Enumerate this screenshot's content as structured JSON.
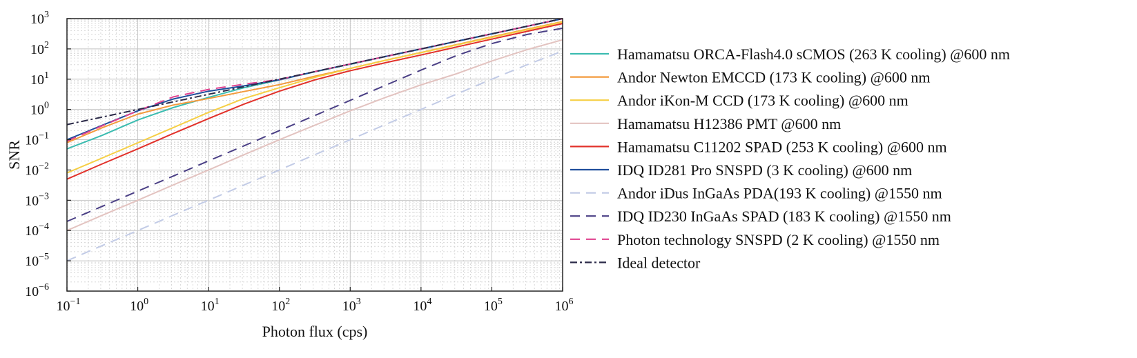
{
  "chart_data": {
    "type": "line",
    "title": "",
    "xlabel": "Photon flux (cps)",
    "ylabel": "SNR",
    "xscale": "log",
    "yscale": "log",
    "xlim": [
      0.1,
      1000000
    ],
    "ylim": [
      1e-06,
      1000
    ],
    "grid": true,
    "legend_position": "right",
    "x_ticks": [
      {
        "base": "10",
        "exp": "−1"
      },
      {
        "base": "10",
        "exp": "0"
      },
      {
        "base": "10",
        "exp": "1"
      },
      {
        "base": "10",
        "exp": "2"
      },
      {
        "base": "10",
        "exp": "3"
      },
      {
        "base": "10",
        "exp": "4"
      },
      {
        "base": "10",
        "exp": "5"
      },
      {
        "base": "10",
        "exp": "6"
      }
    ],
    "y_ticks": [
      {
        "base": "10",
        "exp": "−6"
      },
      {
        "base": "10",
        "exp": "−5"
      },
      {
        "base": "10",
        "exp": "−4"
      },
      {
        "base": "10",
        "exp": "−3"
      },
      {
        "base": "10",
        "exp": "−2"
      },
      {
        "base": "10",
        "exp": "−1"
      },
      {
        "base": "10",
        "exp": "0"
      },
      {
        "base": "10",
        "exp": "1"
      },
      {
        "base": "10",
        "exp": "2"
      },
      {
        "base": "10",
        "exp": "3"
      }
    ],
    "x": [
      0.1,
      0.316,
      1,
      3.16,
      10,
      31.6,
      100,
      316,
      1000,
      3160,
      10000,
      31600,
      100000,
      316000,
      1000000
    ],
    "series": [
      {
        "name": "Hamamatsu ORCA-Flash4.0 sCMOS (263 K cooling) @600 nm",
        "color": "#3bbcb0",
        "dash": "solid",
        "values": [
          0.05,
          0.14,
          0.45,
          1.15,
          2.5,
          5.2,
          9.5,
          17.5,
          31,
          56,
          99,
          175,
          310,
          555,
          990
        ]
      },
      {
        "name": "Andor Newton EMCCD (173 K cooling) @600 nm",
        "color": "#f39a3c",
        "dash": "solid",
        "values": [
          0.08,
          0.25,
          0.7,
          1.4,
          2.3,
          3.9,
          6.6,
          12.5,
          22.7,
          42,
          76,
          138,
          250,
          450,
          800
        ]
      },
      {
        "name": "Andor iKon-M CCD (173 K cooling) @600 nm",
        "color": "#f6cf44",
        "dash": "solid",
        "values": [
          0.008,
          0.025,
          0.079,
          0.25,
          0.8,
          2.3,
          5.2,
          11.5,
          22.5,
          42,
          75,
          134,
          240,
          430,
          770
        ]
      },
      {
        "name": "Hamamatsu H12386 PMT @600 nm",
        "color": "#e3c3c0",
        "dash": "solid",
        "values": [
          0.0001,
          0.00032,
          0.001,
          0.0032,
          0.01,
          0.032,
          0.1,
          0.3,
          0.9,
          2.5,
          6.5,
          15,
          40,
          95,
          200
        ]
      },
      {
        "name": "Hamamatsu C11202 SPAD (253 K cooling) @600 nm",
        "color": "#e2312a",
        "dash": "solid",
        "values": [
          0.005,
          0.016,
          0.05,
          0.16,
          0.5,
          1.5,
          4,
          9.5,
          19,
          35,
          63,
          115,
          210,
          380,
          690
        ]
      },
      {
        "name": "IDQ ID281 Pro SNSPD (3 K cooling) @600 nm",
        "color": "#1f4e9c",
        "dash": "solid",
        "values": [
          0.1,
          0.3,
          0.9,
          2.2,
          4,
          6,
          9.6,
          17.8,
          31.6,
          56,
          100,
          178,
          316,
          562,
          1000
        ]
      },
      {
        "name": "Andor iDus InGaAs PDA(193 K cooling) @1550 nm",
        "color": "#c2cbe6",
        "dash": "long",
        "values": [
          1e-05,
          3.2e-05,
          0.0001,
          0.00032,
          0.001,
          0.0032,
          0.01,
          0.032,
          0.1,
          0.32,
          1,
          3.2,
          10,
          30,
          85
        ]
      },
      {
        "name": "IDQ ID230 InGaAs SPAD (183 K cooling) @1550 nm",
        "color": "#4a3f85",
        "dash": "long",
        "values": [
          0.0002,
          0.00063,
          0.002,
          0.0063,
          0.02,
          0.063,
          0.2,
          0.63,
          2,
          6.3,
          20,
          60,
          150,
          300,
          480
        ]
      },
      {
        "name": "Photon technology SNSPD (2 K cooling) @1550 nm",
        "color": "#e0428f",
        "dash": "long",
        "values": [
          0.09,
          0.29,
          0.9,
          2.6,
          4.6,
          6.8,
          9.8,
          17.8,
          31.6,
          56,
          100,
          178,
          316,
          562,
          1000
        ]
      },
      {
        "name": "Ideal detector",
        "color": "#2b2a48",
        "dash": "dashdot",
        "values": [
          0.316,
          0.562,
          1,
          1.78,
          3.16,
          5.62,
          10,
          17.8,
          31.6,
          56.2,
          100,
          178,
          316,
          562,
          1000
        ]
      }
    ]
  }
}
